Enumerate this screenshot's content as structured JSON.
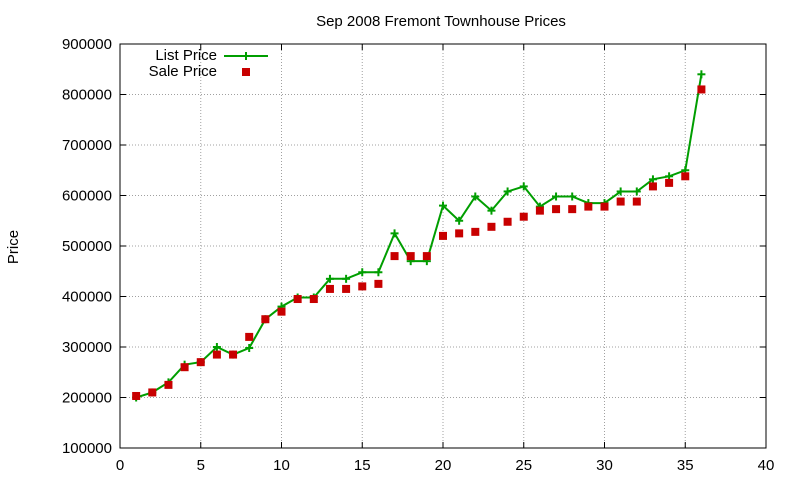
{
  "chart_data": {
    "type": "line",
    "title": "Sep 2008 Fremont Townhouse Prices",
    "xlabel": "",
    "ylabel": "Price",
    "xlim": [
      0,
      40
    ],
    "ylim": [
      100000,
      900000
    ],
    "xticks": [
      0,
      5,
      10,
      15,
      20,
      25,
      30,
      35,
      40
    ],
    "yticks": [
      100000,
      200000,
      300000,
      400000,
      500000,
      600000,
      700000,
      800000,
      900000
    ],
    "grid": true,
    "legend_position": "top-left",
    "series": [
      {
        "name": "List Price",
        "style": "line-with-plus-markers",
        "color": "#009e00",
        "x": [
          1,
          2,
          3,
          4,
          5,
          6,
          7,
          8,
          9,
          10,
          11,
          12,
          13,
          14,
          15,
          16,
          17,
          18,
          19,
          20,
          21,
          22,
          23,
          24,
          25,
          26,
          27,
          28,
          29,
          30,
          31,
          32,
          33,
          34,
          35,
          36
        ],
        "y": [
          200000,
          210000,
          230000,
          265000,
          270000,
          300000,
          285000,
          298000,
          355000,
          380000,
          398000,
          398000,
          435000,
          435000,
          448000,
          448000,
          525000,
          470000,
          470000,
          580000,
          550000,
          598000,
          570000,
          608000,
          618000,
          578000,
          598000,
          598000,
          585000,
          585000,
          608000,
          608000,
          632000,
          638000,
          650000,
          840000
        ]
      },
      {
        "name": "Sale Price",
        "style": "square-markers",
        "color": "#c80000",
        "x": [
          1,
          2,
          3,
          4,
          5,
          6,
          7,
          8,
          9,
          10,
          11,
          12,
          13,
          14,
          15,
          16,
          17,
          18,
          19,
          20,
          21,
          22,
          23,
          24,
          25,
          26,
          27,
          28,
          29,
          30,
          31,
          32,
          33,
          34,
          35,
          36
        ],
        "y": [
          203000,
          210000,
          225000,
          260000,
          270000,
          285000,
          285000,
          320000,
          355000,
          370000,
          395000,
          395000,
          415000,
          415000,
          420000,
          425000,
          480000,
          480000,
          480000,
          520000,
          525000,
          528000,
          538000,
          548000,
          558000,
          570000,
          573000,
          573000,
          578000,
          578000,
          588000,
          588000,
          618000,
          625000,
          638000,
          810000
        ]
      }
    ]
  }
}
